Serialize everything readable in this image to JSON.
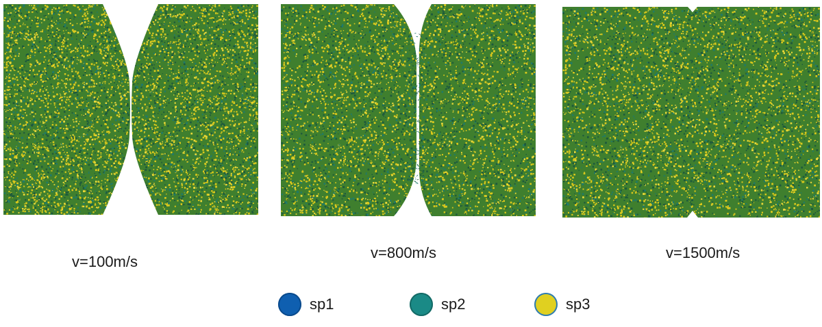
{
  "panels": [
    {
      "id": "p1",
      "caption": "v=100m/s"
    },
    {
      "id": "p2",
      "caption": "v=800m/s"
    },
    {
      "id": "p3",
      "caption": "v=1500m/s"
    }
  ],
  "legend": [
    {
      "label": "sp1",
      "color": "#0f5fb0",
      "edge": "#0a4a8c"
    },
    {
      "label": "sp2",
      "color": "#1a8a86",
      "edge": "#146a66"
    },
    {
      "label": "sp3",
      "color": "#e0d020",
      "edge": "#2b7bb8"
    }
  ],
  "colors": {
    "base": "#3f7f2e",
    "dark": "#1e5a3c",
    "teal": "#1f7a6a",
    "yellow": "#d9c81c",
    "yellow_light": "#e8d83a"
  }
}
